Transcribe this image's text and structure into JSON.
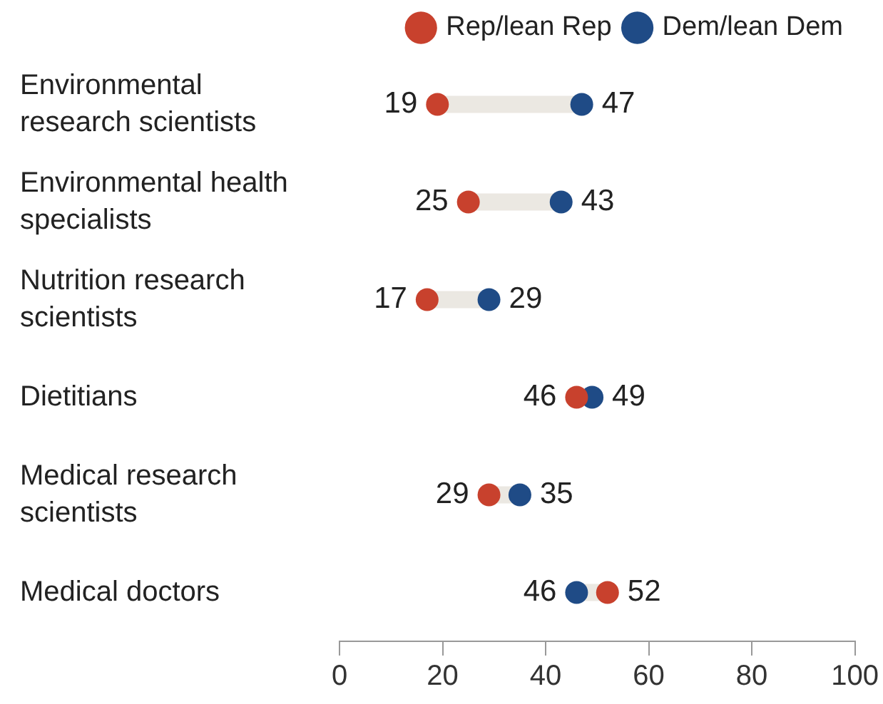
{
  "chart_data": {
    "type": "scatter",
    "orientation": "horizontal",
    "categories": [
      "Environmental research scientists",
      "Environmental health specialists",
      "Nutrition research scientists",
      "Dietitians",
      "Medical research scientists",
      "Medical doctors"
    ],
    "series": [
      {
        "name": "Rep/lean Rep",
        "color": "#c8412d",
        "values": [
          19,
          25,
          17,
          46,
          29,
          52
        ]
      },
      {
        "name": "Dem/lean Dem",
        "color": "#1f4b86",
        "values": [
          47,
          43,
          29,
          49,
          35,
          46
        ]
      }
    ],
    "xlim": [
      0,
      100
    ],
    "xticks": [
      0,
      20,
      40,
      60,
      80,
      100
    ],
    "grid": false,
    "legend": "top right",
    "marker": "circle",
    "data_labels": true
  }
}
